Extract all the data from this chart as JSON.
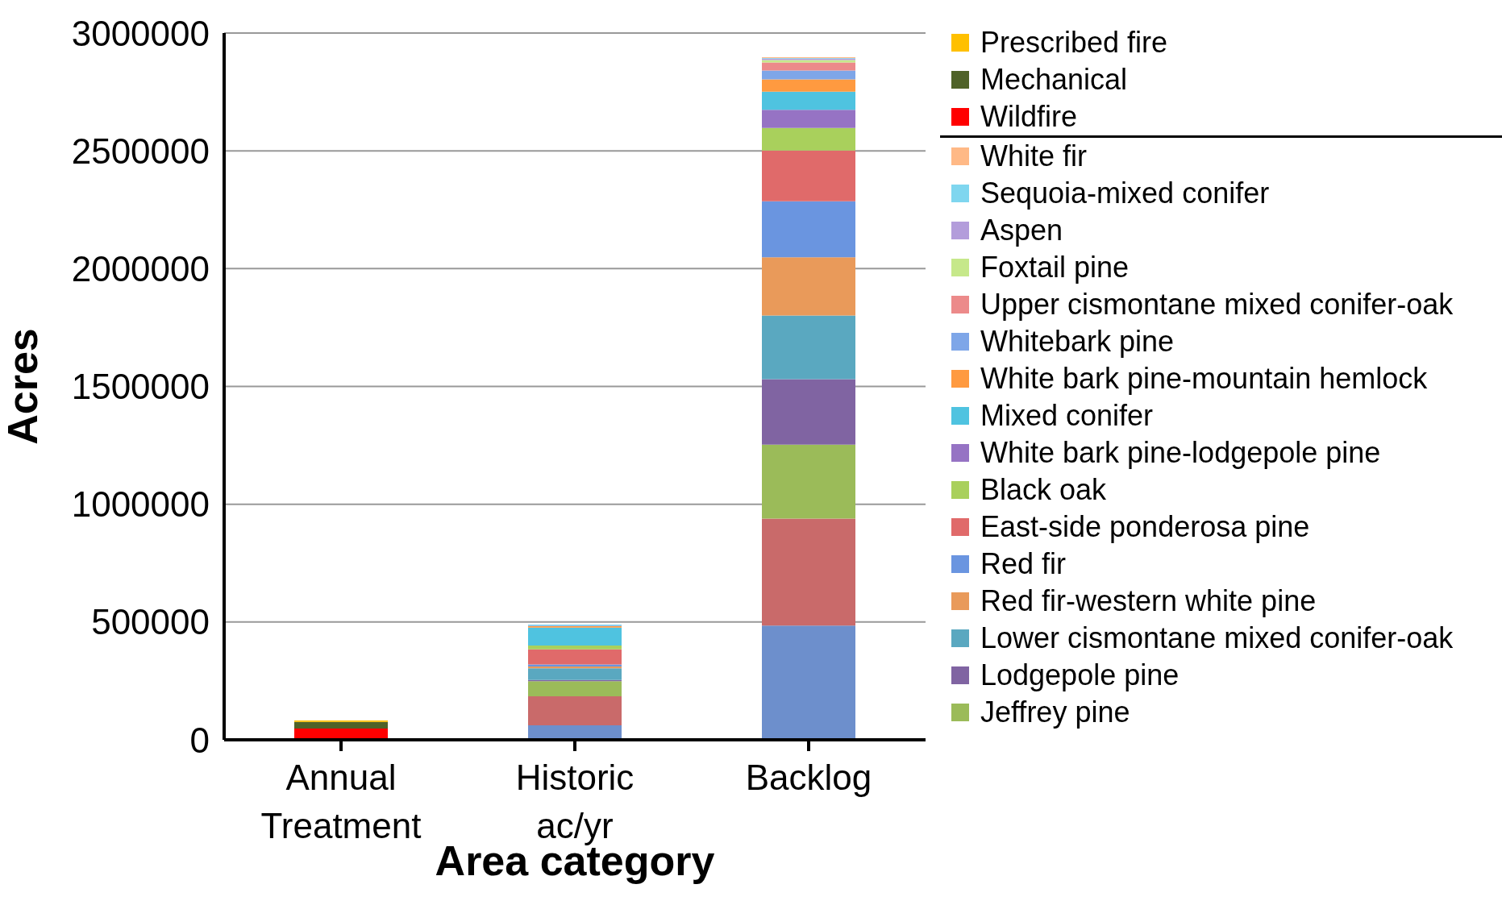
{
  "chart_data": {
    "type": "bar",
    "stacked": true,
    "xlabel": "Area category",
    "ylabel": "Acres",
    "categories": [
      "Annual Treatment",
      "Historic ac/yr",
      "Backlog"
    ],
    "ylim": [
      0,
      3000000
    ],
    "yticks": [
      0,
      500000,
      1000000,
      1500000,
      2000000,
      2500000,
      3000000
    ],
    "grid": "y",
    "legend": "right",
    "series": [
      {
        "color": "#6d8fcc",
        "values": [
          null,
          62000,
          485000
        ]
      },
      {
        "color": "#c96a6a",
        "values": [
          null,
          123000,
          454000
        ]
      },
      {
        "name": "Jeffrey pine",
        "color": "#9bbb59",
        "values": [
          null,
          64000,
          314000
        ]
      },
      {
        "name": "Lodgepole pine",
        "color": "#8064a2",
        "values": [
          null,
          5000,
          278000
        ]
      },
      {
        "name": "Lower cismontane mixed conifer-oak",
        "color": "#5aa8c0",
        "values": [
          null,
          50000,
          270000
        ]
      },
      {
        "name": "Red fir-western white pine",
        "color": "#e99a5a",
        "values": [
          null,
          7000,
          247000
        ]
      },
      {
        "name": "Red fir",
        "color": "#6a95e0",
        "values": [
          null,
          9000,
          238000
        ]
      },
      {
        "name": "East-side ponderosa pine",
        "color": "#e06a6a",
        "values": [
          null,
          64000,
          215000
        ]
      },
      {
        "name": "Black oak",
        "color": "#a9d05c",
        "values": [
          null,
          16000,
          96000
        ]
      },
      {
        "name": "White bark pine-lodgepole pine",
        "color": "#9673c4",
        "values": [
          null,
          null,
          77000
        ]
      },
      {
        "name": "Mixed conifer",
        "color": "#4fc3e0",
        "values": [
          null,
          76000,
          77000
        ]
      },
      {
        "name": "White bark pine-mountain hemlock",
        "color": "#ff9a40",
        "values": [
          null,
          6000,
          52000
        ]
      },
      {
        "name": "Whitebark pine",
        "color": "#7ea6e8",
        "values": [
          null,
          3000,
          38000
        ]
      },
      {
        "name": "Upper cismontane mixed conifer-oak",
        "color": "#ec8a8a",
        "values": [
          null,
          null,
          34000
        ]
      },
      {
        "name": "Foxtail pine",
        "color": "#c6e88a",
        "values": [
          null,
          null,
          10000
        ]
      },
      {
        "name": "Aspen",
        "color": "#b39ddb",
        "values": [
          null,
          null,
          6000
        ]
      },
      {
        "name": "Sequoia-mixed conifer",
        "color": "#7fd6ef",
        "values": [
          null,
          4000,
          3000
        ]
      },
      {
        "name": "White fir",
        "color": "#ffb986",
        "values": [
          null,
          null,
          3000
        ]
      },
      {
        "name": "Wildfire",
        "color": "#ff0000",
        "values": [
          48000,
          null,
          null
        ]
      },
      {
        "name": "Mechanical",
        "color": "#4f6228",
        "values": [
          28000,
          null,
          null
        ]
      },
      {
        "name": "Prescribed fire",
        "color": "#ffc000",
        "values": [
          6000,
          null,
          null
        ]
      }
    ]
  }
}
